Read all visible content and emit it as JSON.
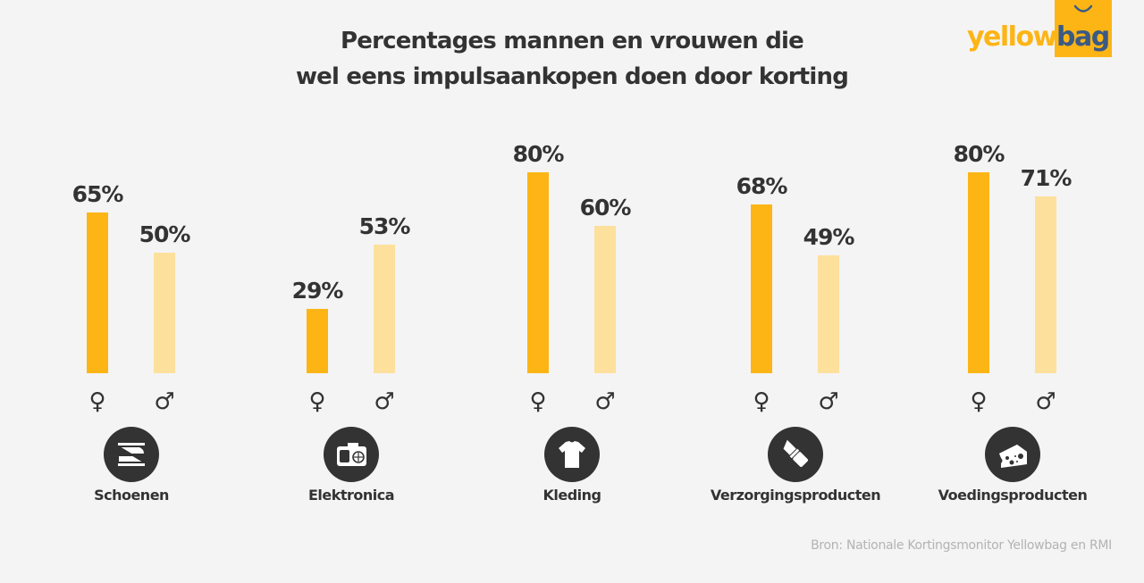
{
  "logo": {
    "part1": "yellow",
    "part2": "bag"
  },
  "colors": {
    "female": "#fdb515",
    "male": "#fde09c",
    "text": "#333333",
    "background": "#f4f4f4",
    "logo_blue": "#3b5a84"
  },
  "chart_data": {
    "type": "bar",
    "title": "Percentages mannen en vrouwen die wel eens impulsaankopen doen door korting",
    "title_lines": [
      "Percentages mannen en vrouwen die",
      "wel eens impulsaankopen doen door korting"
    ],
    "categories": [
      "Schoenen",
      "Elektronica",
      "Kleding",
      "Verzorgingsproducten",
      "Voedingsproducten"
    ],
    "category_icons": [
      "shoes-icon",
      "camera-icon",
      "tshirt-icon",
      "lipstick-icon",
      "cheese-icon"
    ],
    "series": [
      {
        "name": "vrouwen",
        "symbol": "♀",
        "values": [
          65,
          29,
          80,
          68,
          80
        ],
        "labels": [
          "65%",
          "29%",
          "80%",
          "68%",
          "80%"
        ]
      },
      {
        "name": "mannen",
        "symbol": "♂",
        "values": [
          50,
          53,
          60,
          49,
          71
        ],
        "labels": [
          "50%",
          "53%",
          "60%",
          "49%",
          "71%"
        ]
      }
    ],
    "unit": "%",
    "grid": false,
    "xlabel": "",
    "ylabel": ""
  },
  "source": "Bron: Nationale Kortingsmonitor Yellowbag en RMI"
}
